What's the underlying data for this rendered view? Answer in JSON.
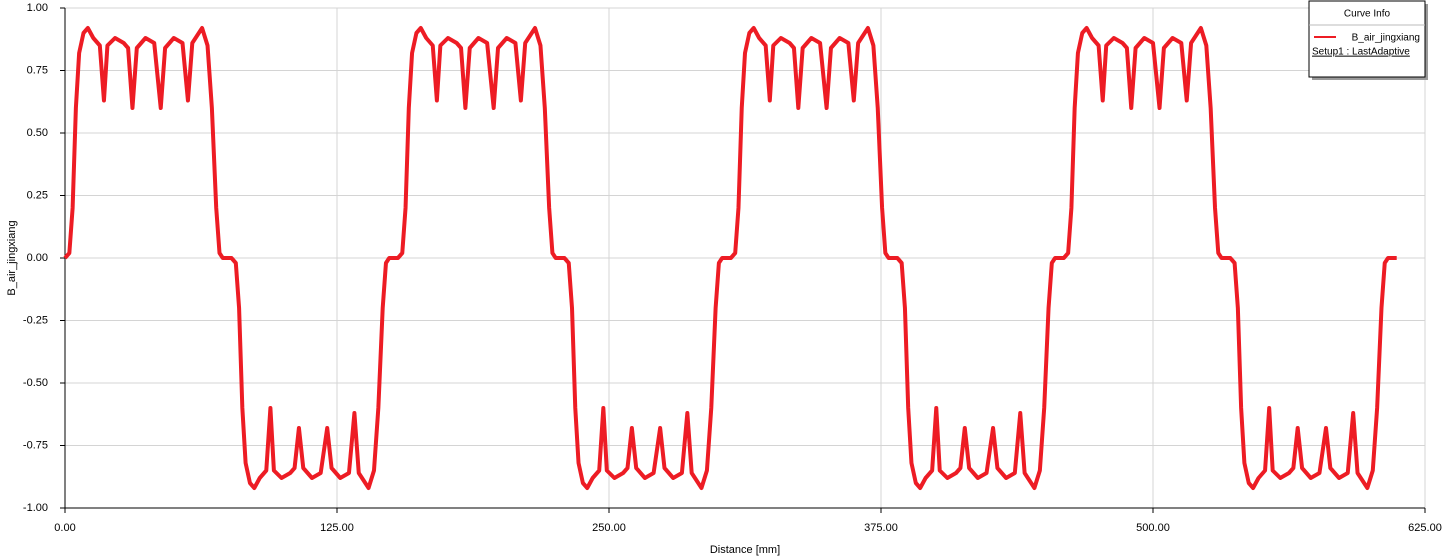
{
  "chart_data": {
    "type": "line",
    "xlabel": "Distance [mm]",
    "ylabel": "B_air_jingxiang",
    "legend_title": "Curve Info",
    "legend": "top-right",
    "grid": true,
    "xlim": [
      0,
      625
    ],
    "ylim": [
      -1,
      1
    ],
    "xticks": [
      {
        "value": 0,
        "label": "0.00"
      },
      {
        "value": 125,
        "label": "125.00"
      },
      {
        "value": 250,
        "label": "250.00"
      },
      {
        "value": 375,
        "label": "375.00"
      },
      {
        "value": 500,
        "label": "500.00"
      },
      {
        "value": 625,
        "label": "625.00"
      }
    ],
    "yticks": [
      {
        "value": 1,
        "label": "1.00"
      },
      {
        "value": 0.75,
        "label": "0.75"
      },
      {
        "value": 0.5,
        "label": "0.50"
      },
      {
        "value": 0.25,
        "label": "0.25"
      },
      {
        "value": 0,
        "label": "0.00"
      },
      {
        "value": -0.25,
        "label": "-0.25"
      },
      {
        "value": -0.5,
        "label": "-0.50"
      },
      {
        "value": -0.75,
        "label": "-0.75"
      },
      {
        "value": -1,
        "label": "-1.00"
      }
    ],
    "x": [
      0,
      2,
      3.5,
      5,
      6.5,
      8.5,
      10.5,
      13,
      16,
      17.9,
      19.5,
      23,
      27,
      29,
      31,
      33,
      37,
      41,
      44,
      46,
      50,
      54,
      56.5,
      58.5,
      63,
      65.5,
      67.5,
      69.5,
      71,
      72.5,
      76.5,
      78.5,
      80,
      81.5,
      83,
      85,
      87,
      89.5,
      92.5,
      94.4,
      96,
      99.5,
      103.5,
      105.5,
      107.5,
      109.5,
      113.5,
      117.5,
      120.5,
      122.5,
      126.5,
      130.5,
      133,
      135,
      139.5,
      142,
      144,
      146,
      147.5,
      149,
      153,
      155,
      156.5,
      158,
      159.5,
      161.5,
      163.5,
      166,
      169,
      170.9,
      172.5,
      176,
      180,
      182,
      184,
      186,
      190,
      194,
      197,
      199,
      203,
      207,
      209.5,
      211.5,
      216,
      218.5,
      220.5,
      222.5,
      224,
      225.5,
      229.5,
      231.5,
      233,
      234.5,
      236,
      238,
      240,
      242.5,
      245.5,
      247.4,
      249,
      252.5,
      256.5,
      258.5,
      260.5,
      262.5,
      266.5,
      270.5,
      273.5,
      275.5,
      279.5,
      283.5,
      286,
      288,
      292.5,
      295,
      297,
      299,
      300.5,
      302,
      306,
      308,
      309.5,
      311,
      312.5,
      314.5,
      316.5,
      319,
      322,
      323.9,
      325.5,
      329,
      333,
      335,
      337,
      339,
      343,
      347,
      350,
      352,
      356,
      360,
      362.5,
      364.5,
      369,
      371.5,
      373.5,
      375.5,
      377,
      378.5,
      382.5,
      384.5,
      386,
      387.5,
      389,
      391,
      393,
      395.5,
      398.5,
      400.4,
      402,
      405.5,
      409.5,
      411.5,
      413.5,
      415.5,
      419.5,
      423.5,
      426.5,
      428.5,
      432.5,
      436.5,
      439,
      441,
      445.5,
      448,
      450,
      452,
      453.5,
      455,
      459,
      461,
      462.5,
      464,
      465.5,
      467.5,
      469.5,
      472,
      475,
      476.9,
      478.5,
      482,
      486,
      488,
      490,
      492,
      496,
      500,
      503,
      505,
      509,
      513,
      515.5,
      517.5,
      522,
      524.5,
      526.5,
      528.5,
      530,
      531.5,
      535.5,
      537.5,
      539,
      540.5,
      542,
      544,
      546,
      548.5,
      551.5,
      553.4,
      555,
      558.5,
      562.5,
      564.5,
      566.5,
      568.5,
      572.5,
      576.5,
      579.5,
      581.5,
      585.5,
      589.5,
      592,
      594,
      598.5,
      601,
      603,
      605,
      606.5,
      608,
      612
    ],
    "series": [
      {
        "name": "B_air_jingxiang",
        "source": "Setup1 : LastAdaptive",
        "color": "#ed1c24",
        "values": [
          0,
          0.02,
          0.2,
          0.6,
          0.82,
          0.9,
          0.92,
          0.88,
          0.85,
          0.63,
          0.85,
          0.88,
          0.86,
          0.84,
          0.6,
          0.84,
          0.88,
          0.86,
          0.6,
          0.84,
          0.88,
          0.86,
          0.63,
          0.86,
          0.92,
          0.85,
          0.6,
          0.2,
          0.02,
          0,
          0,
          -0.02,
          -0.2,
          -0.6,
          -0.82,
          -0.9,
          -0.92,
          -0.88,
          -0.85,
          -0.6,
          -0.85,
          -0.88,
          -0.86,
          -0.84,
          -0.68,
          -0.84,
          -0.88,
          -0.86,
          -0.68,
          -0.84,
          -0.88,
          -0.86,
          -0.62,
          -0.86,
          -0.92,
          -0.85,
          -0.6,
          -0.2,
          -0.02,
          0,
          0,
          0.02,
          0.2,
          0.6,
          0.82,
          0.9,
          0.92,
          0.88,
          0.85,
          0.63,
          0.85,
          0.88,
          0.86,
          0.84,
          0.6,
          0.84,
          0.88,
          0.86,
          0.6,
          0.84,
          0.88,
          0.86,
          0.63,
          0.86,
          0.92,
          0.85,
          0.6,
          0.2,
          0.02,
          0,
          0,
          -0.02,
          -0.2,
          -0.6,
          -0.82,
          -0.9,
          -0.92,
          -0.88,
          -0.85,
          -0.6,
          -0.85,
          -0.88,
          -0.86,
          -0.84,
          -0.68,
          -0.84,
          -0.88,
          -0.86,
          -0.68,
          -0.84,
          -0.88,
          -0.86,
          -0.62,
          -0.86,
          -0.92,
          -0.85,
          -0.6,
          -0.2,
          -0.02,
          0,
          0,
          0.02,
          0.2,
          0.6,
          0.82,
          0.9,
          0.92,
          0.88,
          0.85,
          0.63,
          0.85,
          0.88,
          0.86,
          0.84,
          0.6,
          0.84,
          0.88,
          0.86,
          0.6,
          0.84,
          0.88,
          0.86,
          0.63,
          0.86,
          0.92,
          0.85,
          0.6,
          0.2,
          0.02,
          0,
          0,
          -0.02,
          -0.2,
          -0.6,
          -0.82,
          -0.9,
          -0.92,
          -0.88,
          -0.85,
          -0.6,
          -0.85,
          -0.88,
          -0.86,
          -0.84,
          -0.68,
          -0.84,
          -0.88,
          -0.86,
          -0.68,
          -0.84,
          -0.88,
          -0.86,
          -0.62,
          -0.86,
          -0.92,
          -0.85,
          -0.6,
          -0.2,
          -0.02,
          0,
          0,
          0.02,
          0.2,
          0.6,
          0.82,
          0.9,
          0.92,
          0.88,
          0.85,
          0.63,
          0.85,
          0.88,
          0.86,
          0.84,
          0.6,
          0.84,
          0.88,
          0.86,
          0.6,
          0.84,
          0.88,
          0.86,
          0.63,
          0.86,
          0.92,
          0.85,
          0.6,
          0.2,
          0.02,
          0,
          0,
          -0.02,
          -0.2,
          -0.6,
          -0.82,
          -0.9,
          -0.92,
          -0.88,
          -0.85,
          -0.6,
          -0.85,
          -0.88,
          -0.86,
          -0.84,
          -0.68,
          -0.84,
          -0.88,
          -0.86,
          -0.68,
          -0.84,
          -0.88,
          -0.86,
          -0.62,
          -0.86,
          -0.92,
          -0.85,
          -0.6,
          -0.2,
          -0.02,
          0,
          0
        ]
      }
    ]
  }
}
